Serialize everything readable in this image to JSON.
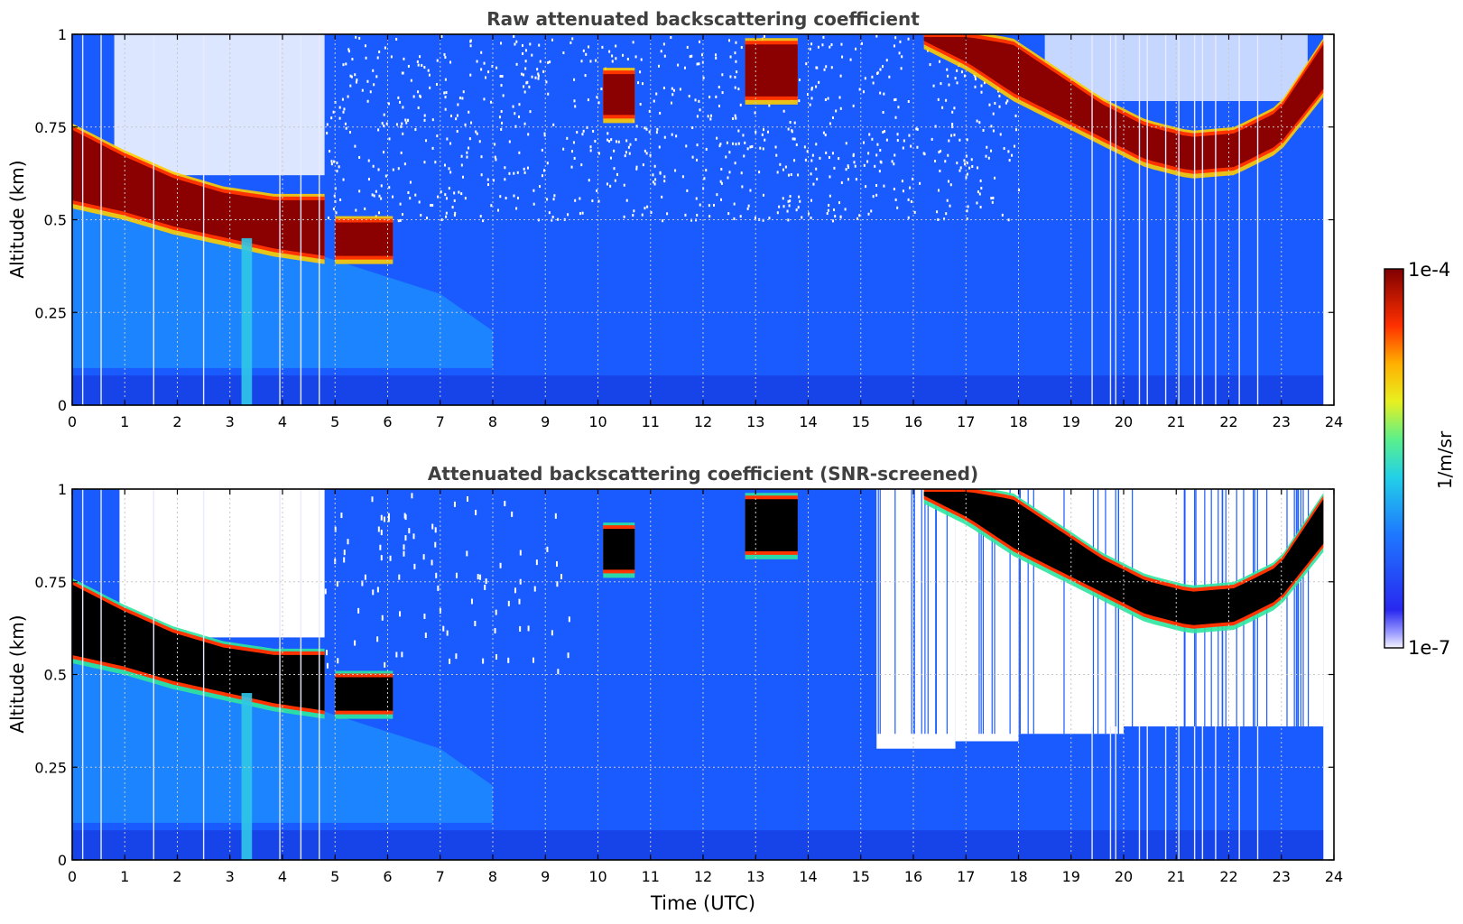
{
  "chart_data": [
    {
      "type": "heatmap",
      "title": "Raw attenuated backscattering coefficient",
      "xlabel": "",
      "ylabel": "Altitude (km)",
      "xlim": [
        0,
        24
      ],
      "ylim": [
        0,
        1
      ],
      "xticks": [
        0,
        1,
        2,
        3,
        4,
        5,
        6,
        7,
        8,
        9,
        10,
        11,
        12,
        13,
        14,
        15,
        16,
        17,
        18,
        19,
        20,
        21,
        22,
        23,
        24
      ],
      "xticklabels": [
        "0",
        "1",
        "2",
        "3",
        "4",
        "5",
        "6",
        "7",
        "8",
        "9",
        "10",
        "11",
        "12",
        "13",
        "14",
        "15",
        "16",
        "17",
        "18",
        "19",
        "20",
        "21",
        "22",
        "23",
        "24"
      ],
      "yticks": [
        0,
        0.25,
        0.5,
        0.75,
        1
      ],
      "yticklabels": [
        "0",
        "0.25",
        "0.5",
        "0.75",
        "1"
      ],
      "grid": true,
      "data_end_time": 23.8,
      "cloud_layers": [
        {
          "name": "boundary-layer-cloud",
          "start": 0.0,
          "end": 4.8,
          "base_km": [
            0.55,
            0.52,
            0.48,
            0.45,
            0.42,
            0.4
          ],
          "top_km": [
            0.75,
            0.68,
            0.62,
            0.58,
            0.56,
            0.56
          ]
        },
        {
          "name": "broken-cloud",
          "start": 5.0,
          "end": 6.1,
          "base_km": 0.4,
          "top_km": 0.5
        },
        {
          "name": "cloud-patch",
          "start": 10.1,
          "end": 10.7,
          "base_km": 0.78,
          "top_km": 0.9
        },
        {
          "name": "cloud-patch",
          "start": 12.8,
          "end": 13.8,
          "base_km": 0.83,
          "top_km": 0.98
        },
        {
          "name": "descending-cloud-layer",
          "start": 16.2,
          "end": 23.8,
          "base_km": [
            0.98,
            0.92,
            0.84,
            0.78,
            0.72,
            0.66,
            0.63,
            0.64,
            0.7,
            0.85
          ],
          "top_km": [
            1.0,
            1.0,
            0.98,
            0.9,
            0.82,
            0.76,
            0.73,
            0.74,
            0.8,
            0.98
          ]
        }
      ],
      "noisy_region": {
        "start": 4.8,
        "end": 18.0,
        "above_km": 0.5
      }
    },
    {
      "type": "heatmap",
      "title": "Attenuated backscattering coefficient (SNR-screened)",
      "xlabel": "Time (UTC)",
      "ylabel": "Altitude (km)",
      "xlim": [
        0,
        24
      ],
      "ylim": [
        0,
        1
      ],
      "xticks": [
        0,
        1,
        2,
        3,
        4,
        5,
        6,
        7,
        8,
        9,
        10,
        11,
        12,
        13,
        14,
        15,
        16,
        17,
        18,
        19,
        20,
        21,
        22,
        23,
        24
      ],
      "xticklabels": [
        "0",
        "1",
        "2",
        "3",
        "4",
        "5",
        "6",
        "7",
        "8",
        "9",
        "10",
        "11",
        "12",
        "13",
        "14",
        "15",
        "16",
        "17",
        "18",
        "19",
        "20",
        "21",
        "22",
        "23",
        "24"
      ],
      "yticks": [
        0,
        0.25,
        0.5,
        0.75,
        1
      ],
      "yticklabels": [
        "0",
        "0.25",
        "0.5",
        "0.75",
        "1"
      ],
      "grid": true,
      "screened_top_km": [
        {
          "start": 15.3,
          "end": 16.8,
          "value": 0.3
        },
        {
          "start": 16.8,
          "end": 18.0,
          "value": 0.32
        },
        {
          "start": 18.0,
          "end": 20.0,
          "value": 0.34
        },
        {
          "start": 20.0,
          "end": 23.8,
          "value": 0.36
        }
      ],
      "saturated_color": "#000000"
    }
  ],
  "colorbar": {
    "label": "1/m/sr",
    "max_label": "1e-4",
    "min_label": "1e-7",
    "scale": "log",
    "range": [
      1e-07,
      0.0001
    ]
  },
  "colors": {
    "background": "#1a5bff",
    "cloud_core": "#8b0000",
    "screened_core": "#000000",
    "missing": "#ffffff"
  }
}
